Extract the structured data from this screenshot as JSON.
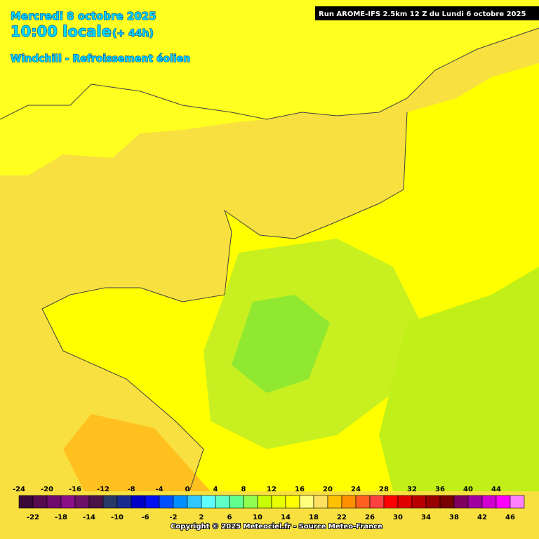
{
  "header": {
    "date": "Mercredi 8 octobre 2025",
    "time": "10:00 locale",
    "lead": "(+ 44h)",
    "variable": "Windchill - Refroissement éolien",
    "run": "Run AROME-IFS 2.5km 12 Z du Lundi 6 octobre 2025"
  },
  "legend": {
    "values": [
      -24,
      -22,
      -20,
      -18,
      -16,
      -14,
      -12,
      -10,
      -8,
      -6,
      -4,
      -2,
      0,
      2,
      4,
      6,
      8,
      10,
      12,
      14,
      16,
      18,
      20,
      22,
      24,
      26,
      28,
      30,
      32,
      34,
      36,
      38,
      40,
      42,
      44,
      46
    ],
    "colors": [
      "#3a0838",
      "#560a50",
      "#700c6c",
      "#8a1088",
      "#6c1068",
      "#4a1448",
      "#283868",
      "#182c90",
      "#0000c8",
      "#0010f0",
      "#0050ff",
      "#0090ff",
      "#30c8ff",
      "#60ffff",
      "#60ffc8",
      "#60ff90",
      "#90ff50",
      "#c8ff00",
      "#e8ff00",
      "#ffff00",
      "#ffff80",
      "#ffe060",
      "#ffc000",
      "#ff9000",
      "#ff6020",
      "#ff4040",
      "#ff0000",
      "#e00000",
      "#b80000",
      "#980000",
      "#780000",
      "#800060",
      "#a000a0",
      "#d000d0",
      "#ff00ff",
      "#ff80ff"
    ]
  },
  "footer": {
    "copyright": "Copyright © 2025 Meteociel.fr - Source Meteo-France"
  }
}
